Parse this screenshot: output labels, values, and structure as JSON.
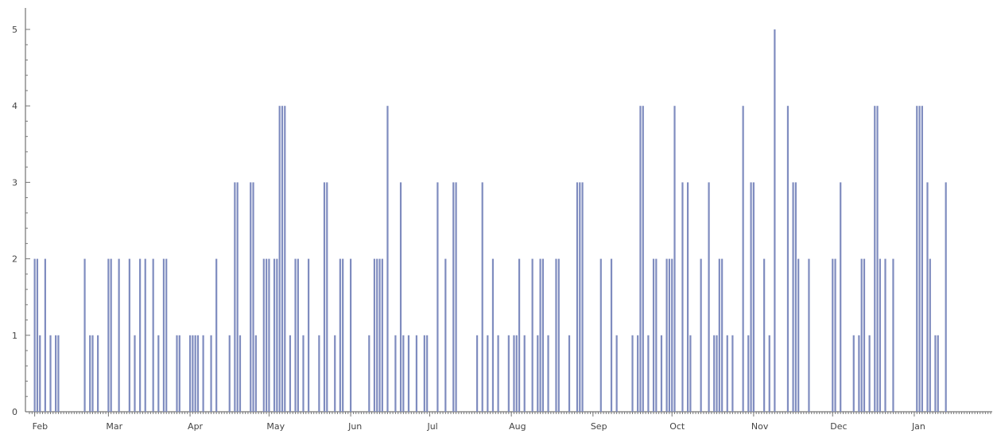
{
  "chart_data": {
    "type": "bar",
    "title": "",
    "xlabel": "",
    "ylabel": "",
    "ylim": [
      0,
      5
    ],
    "y_ticks": [
      0,
      1,
      2,
      3,
      4,
      5
    ],
    "y_tick_labels": [
      "0",
      "1",
      "2",
      "3",
      "4",
      "5"
    ],
    "x_range_days": [
      0,
      365
    ],
    "month_labels": [
      {
        "day": 2,
        "label": "Feb"
      },
      {
        "day": 30,
        "label": "Mar"
      },
      {
        "day": 61,
        "label": "Apr"
      },
      {
        "day": 91,
        "label": "May"
      },
      {
        "day": 122,
        "label": "Jun"
      },
      {
        "day": 152,
        "label": "Jul"
      },
      {
        "day": 183,
        "label": "Aug"
      },
      {
        "day": 214,
        "label": "Sep"
      },
      {
        "day": 244,
        "label": "Oct"
      },
      {
        "day": 275,
        "label": "Nov"
      },
      {
        "day": 305,
        "label": "Dec"
      },
      {
        "day": 336,
        "label": "Jan"
      }
    ],
    "series": [
      {
        "points": [
          [
            2,
            2
          ],
          [
            3,
            2
          ],
          [
            4,
            1
          ],
          [
            6,
            2
          ],
          [
            8,
            1
          ],
          [
            10,
            1
          ],
          [
            11,
            1
          ],
          [
            21,
            2
          ],
          [
            23,
            1
          ],
          [
            24,
            1
          ],
          [
            26,
            1
          ],
          [
            30,
            2
          ],
          [
            31,
            2
          ],
          [
            34,
            2
          ],
          [
            38,
            2
          ],
          [
            40,
            1
          ],
          [
            42,
            2
          ],
          [
            44,
            2
          ],
          [
            47,
            2
          ],
          [
            49,
            1
          ],
          [
            51,
            2
          ],
          [
            52,
            2
          ],
          [
            56,
            1
          ],
          [
            57,
            1
          ],
          [
            61,
            1
          ],
          [
            62,
            1
          ],
          [
            63,
            1
          ],
          [
            64,
            1
          ],
          [
            66,
            1
          ],
          [
            69,
            1
          ],
          [
            71,
            2
          ],
          [
            76,
            1
          ],
          [
            78,
            3
          ],
          [
            79,
            3
          ],
          [
            80,
            1
          ],
          [
            84,
            3
          ],
          [
            85,
            3
          ],
          [
            86,
            1
          ],
          [
            89,
            2
          ],
          [
            90,
            2
          ],
          [
            91,
            2
          ],
          [
            93,
            2
          ],
          [
            94,
            2
          ],
          [
            95,
            4
          ],
          [
            96,
            4
          ],
          [
            97,
            4
          ],
          [
            99,
            1
          ],
          [
            101,
            2
          ],
          [
            102,
            2
          ],
          [
            104,
            1
          ],
          [
            106,
            2
          ],
          [
            110,
            1
          ],
          [
            112,
            3
          ],
          [
            113,
            3
          ],
          [
            116,
            1
          ],
          [
            118,
            2
          ],
          [
            119,
            2
          ],
          [
            122,
            2
          ],
          [
            129,
            1
          ],
          [
            131,
            2
          ],
          [
            132,
            2
          ],
          [
            133,
            2
          ],
          [
            134,
            2
          ],
          [
            136,
            4
          ],
          [
            139,
            1
          ],
          [
            141,
            3
          ],
          [
            142,
            1
          ],
          [
            144,
            1
          ],
          [
            147,
            1
          ],
          [
            150,
            1
          ],
          [
            151,
            1
          ],
          [
            155,
            3
          ],
          [
            158,
            2
          ],
          [
            161,
            3
          ],
          [
            162,
            3
          ],
          [
            170,
            1
          ],
          [
            172,
            3
          ],
          [
            174,
            1
          ],
          [
            176,
            2
          ],
          [
            178,
            1
          ],
          [
            182,
            1
          ],
          [
            184,
            1
          ],
          [
            185,
            1
          ],
          [
            186,
            2
          ],
          [
            188,
            1
          ],
          [
            191,
            2
          ],
          [
            193,
            1
          ],
          [
            194,
            2
          ],
          [
            195,
            2
          ],
          [
            197,
            1
          ],
          [
            200,
            2
          ],
          [
            201,
            2
          ],
          [
            205,
            1
          ],
          [
            208,
            3
          ],
          [
            209,
            3
          ],
          [
            210,
            3
          ],
          [
            217,
            2
          ],
          [
            221,
            2
          ],
          [
            223,
            1
          ],
          [
            229,
            1
          ],
          [
            231,
            1
          ],
          [
            232,
            4
          ],
          [
            233,
            4
          ],
          [
            235,
            1
          ],
          [
            237,
            2
          ],
          [
            238,
            2
          ],
          [
            240,
            1
          ],
          [
            242,
            2
          ],
          [
            243,
            2
          ],
          [
            244,
            2
          ],
          [
            245,
            4
          ],
          [
            248,
            3
          ],
          [
            250,
            3
          ],
          [
            251,
            1
          ],
          [
            255,
            2
          ],
          [
            258,
            3
          ],
          [
            260,
            1
          ],
          [
            261,
            1
          ],
          [
            262,
            2
          ],
          [
            263,
            2
          ],
          [
            265,
            1
          ],
          [
            267,
            1
          ],
          [
            271,
            4
          ],
          [
            273,
            1
          ],
          [
            274,
            3
          ],
          [
            275,
            3
          ],
          [
            279,
            2
          ],
          [
            281,
            1
          ],
          [
            283,
            5
          ],
          [
            288,
            4
          ],
          [
            290,
            3
          ],
          [
            291,
            3
          ],
          [
            292,
            2
          ],
          [
            296,
            2
          ],
          [
            305,
            2
          ],
          [
            306,
            2
          ],
          [
            308,
            3
          ],
          [
            313,
            1
          ],
          [
            315,
            1
          ],
          [
            316,
            2
          ],
          [
            317,
            2
          ],
          [
            319,
            1
          ],
          [
            321,
            4
          ],
          [
            322,
            4
          ],
          [
            323,
            2
          ],
          [
            325,
            2
          ],
          [
            328,
            2
          ],
          [
            337,
            4
          ],
          [
            338,
            4
          ],
          [
            339,
            4
          ],
          [
            341,
            3
          ],
          [
            342,
            2
          ],
          [
            344,
            1
          ],
          [
            345,
            1
          ],
          [
            348,
            3
          ]
        ]
      }
    ]
  }
}
